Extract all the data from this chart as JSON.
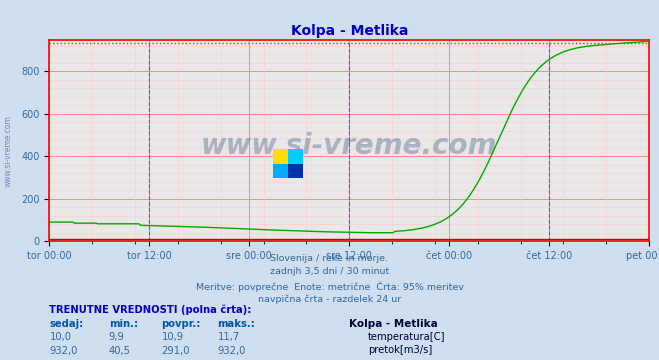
{
  "title": "Kolpa - Metlika",
  "title_color": "#0000cc",
  "bg_color": "#d0dff0",
  "plot_bg_color": "#e8e8e8",
  "grid_major_color": "#ff8888",
  "grid_minor_color": "#ffcccc",
  "vline_color": "#ff00ff",
  "border_color": "#ff0000",
  "ymin": 0,
  "ymax": 950,
  "yticks": [
    0,
    200,
    400,
    600,
    800
  ],
  "x_labels": [
    "tor 00:00",
    "tor 12:00",
    "sre 00:00",
    "sre 12:00",
    "čet 00:00",
    "čet 12:00",
    "pet 00:00"
  ],
  "flow_color": "#00aa00",
  "temp_color": "#cc0000",
  "watermark": "www.si-vreme.com",
  "subtitle_lines": [
    "Slovenija / reke in morje.",
    "zadnjh 3,5 dni / 30 minut",
    "Meritve: povprečne  Enote: metrične  Črta: 95% meritev",
    "navpična črta - razdelek 24 ur"
  ],
  "table_header": "TRENUTNE VREDNOSTI (polna črta):",
  "col_headers": [
    "sedaj:",
    "min.:",
    "povpr.:",
    "maks.:"
  ],
  "row1": [
    "10,0",
    "9,9",
    "10,9",
    "11,7"
  ],
  "row2": [
    "932,0",
    "40,5",
    "291,0",
    "932,0"
  ],
  "legend_title": "Kolpa - Metlika",
  "legend_items": [
    "temperatura[C]",
    "pretok[m3/s]"
  ],
  "flow_peak": 932,
  "max_line": 932
}
